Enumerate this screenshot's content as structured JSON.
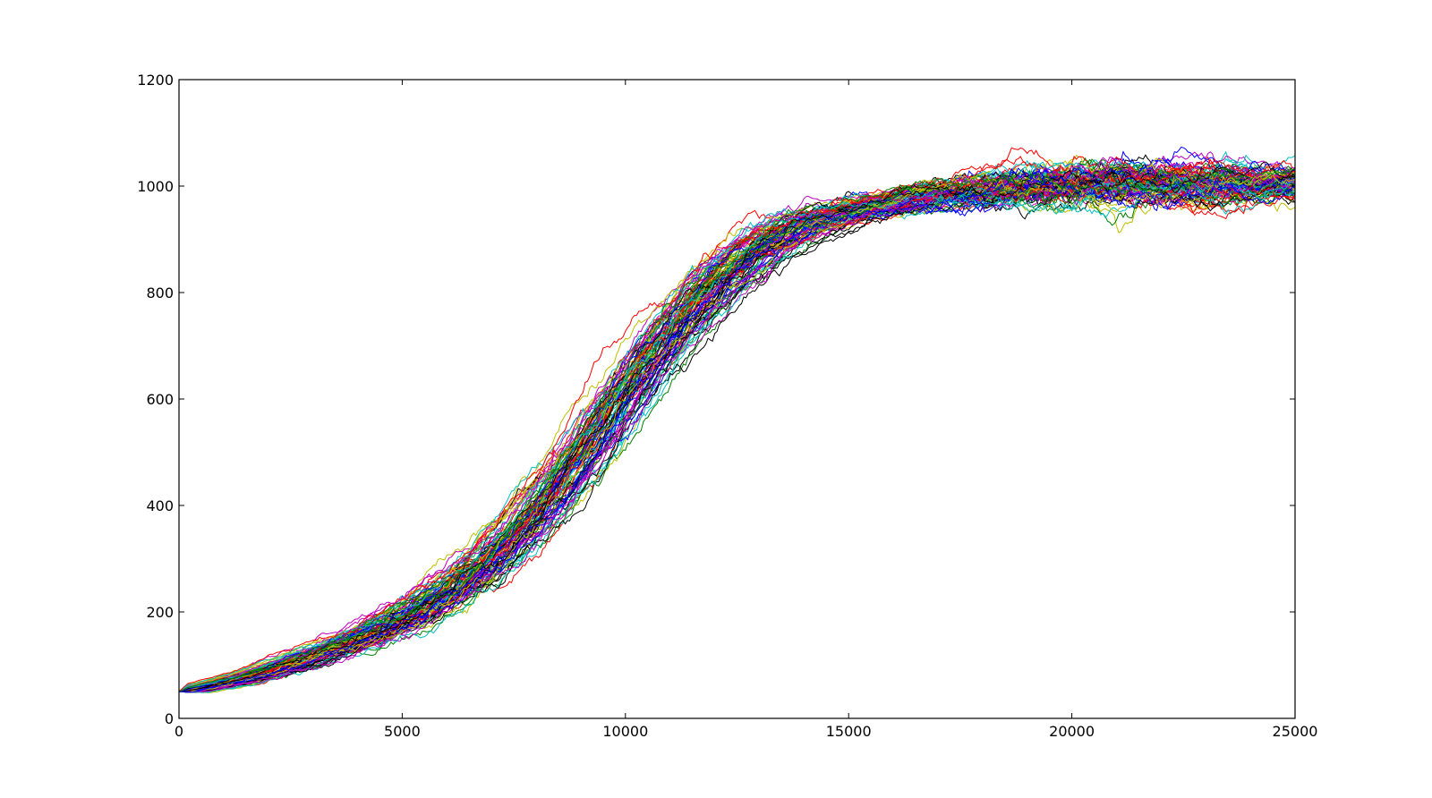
{
  "chart_data": {
    "type": "line",
    "title": "",
    "xlabel": "",
    "ylabel": "",
    "xlim": [
      0,
      25000
    ],
    "ylim": [
      0,
      1200
    ],
    "x_ticks": [
      0,
      5000,
      10000,
      15000,
      20000,
      25000
    ],
    "x_tick_labels": [
      "0",
      "5000",
      "10000",
      "15000",
      "20000",
      "25000"
    ],
    "y_ticks": [
      0,
      200,
      400,
      600,
      800,
      1000,
      1200
    ],
    "y_tick_labels": [
      "0",
      "200",
      "400",
      "600",
      "800",
      "1000",
      "1200"
    ],
    "grid": false,
    "legend": "none",
    "series_colors": [
      "#0000ff",
      "#008000",
      "#ff0000",
      "#00bfbf",
      "#bf00bf",
      "#bfbf00",
      "#000000"
    ],
    "series_count": 100,
    "mean_curve": {
      "x": [
        0,
        1000,
        2000,
        3000,
        4000,
        5000,
        6000,
        7000,
        8000,
        9000,
        10000,
        11000,
        12000,
        13000,
        14000,
        15000,
        16000,
        17000,
        18000,
        19000,
        20000,
        21000,
        22000,
        23000,
        24000,
        25000
      ],
      "y": [
        50,
        67,
        90,
        118,
        150,
        190,
        240,
        305,
        395,
        500,
        620,
        730,
        820,
        885,
        930,
        955,
        970,
        983,
        991,
        996,
        1000,
        1003,
        1005,
        1005,
        1005,
        1005
      ]
    },
    "series_spread": {
      "x": [
        0,
        5000,
        10000,
        12000,
        15000,
        20000,
        25000
      ],
      "y_min": [
        50,
        145,
        560,
        780,
        920,
        940,
        950
      ],
      "y_max": [
        52,
        240,
        700,
        910,
        1000,
        1110,
        1075
      ]
    }
  }
}
